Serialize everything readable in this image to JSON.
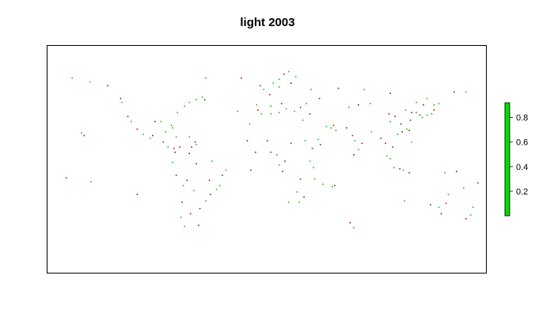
{
  "title": "light 2003",
  "colors": {
    "green": "#00cc00",
    "red": "#cc0000",
    "dark": "#553300",
    "legend_fill": "#00dd00",
    "frame": "#000000"
  },
  "legend": {
    "ticks": [
      {
        "label": "0.8",
        "value": 0.8
      },
      {
        "label": "0.6",
        "value": 0.6
      },
      {
        "label": "0.4",
        "value": 0.4
      },
      {
        "label": "0.2",
        "value": 0.2
      }
    ],
    "range": [
      0.0,
      0.92
    ]
  },
  "points": [
    {
      "lon": -77,
      "lat": 18,
      "c": "green"
    },
    {
      "lon": -74,
      "lat": 10,
      "c": "red"
    },
    {
      "lon": -86,
      "lat": 22,
      "c": "green"
    },
    {
      "lon": -88,
      "lat": 14,
      "c": "red"
    },
    {
      "lon": -105,
      "lat": 20,
      "c": "green"
    },
    {
      "lon": -110,
      "lat": 24,
      "c": "red"
    },
    {
      "lon": -115,
      "lat": 30,
      "c": "green"
    },
    {
      "lon": -118,
      "lat": 34,
      "c": "dark"
    },
    {
      "lon": -123,
      "lat": 45,
      "c": "green"
    },
    {
      "lon": -124,
      "lat": 48,
      "c": "red"
    },
    {
      "lon": -66,
      "lat": 18,
      "c": "green"
    },
    {
      "lon": -61,
      "lat": 14,
      "c": "red"
    },
    {
      "lon": -60,
      "lat": 12,
      "c": "green"
    },
    {
      "lon": -64,
      "lat": 10,
      "c": "dark"
    },
    {
      "lon": -80,
      "lat": 25,
      "c": "green"
    },
    {
      "lon": -81,
      "lat": 27,
      "c": "green"
    },
    {
      "lon": -76,
      "lat": 37,
      "c": "green"
    },
    {
      "lon": -70,
      "lat": 42,
      "c": "green"
    },
    {
      "lon": -66,
      "lat": 45,
      "c": "green"
    },
    {
      "lon": -60,
      "lat": 47,
      "c": "green"
    },
    {
      "lon": -55,
      "lat": 49,
      "c": "green"
    },
    {
      "lon": -53,
      "lat": 47,
      "c": "dark"
    },
    {
      "lon": -40,
      "lat": -20,
      "c": "green"
    },
    {
      "lon": -38,
      "lat": -12,
      "c": "red"
    },
    {
      "lon": -35,
      "lat": -8,
      "c": "green"
    },
    {
      "lon": -48,
      "lat": -27,
      "c": "red"
    },
    {
      "lon": -52,
      "lat": -32,
      "c": "green"
    },
    {
      "lon": -57,
      "lat": -38,
      "c": "dark"
    },
    {
      "lon": -65,
      "lat": -42,
      "c": "red"
    },
    {
      "lon": -70,
      "lat": -52,
      "c": "green"
    },
    {
      "lon": -73,
      "lat": -45,
      "c": "green"
    },
    {
      "lon": -72,
      "lat": -33,
      "c": "red"
    },
    {
      "lon": -71,
      "lat": -20,
      "c": "green"
    },
    {
      "lon": -77,
      "lat": -12,
      "c": "red"
    },
    {
      "lon": -80,
      "lat": -2,
      "c": "green"
    },
    {
      "lon": -78,
      "lat": 6,
      "c": "dark"
    },
    {
      "lon": -3,
      "lat": 55,
      "c": "green"
    },
    {
      "lon": -6,
      "lat": 58,
      "c": "red"
    },
    {
      "lon": 5,
      "lat": 60,
      "c": "green"
    },
    {
      "lon": 10,
      "lat": 63,
      "c": "green"
    },
    {
      "lon": 14,
      "lat": 67,
      "c": "red"
    },
    {
      "lon": 18,
      "lat": 69,
      "c": "green"
    },
    {
      "lon": 24,
      "lat": 65,
      "c": "green"
    },
    {
      "lon": 20,
      "lat": 60,
      "c": "dark"
    },
    {
      "lon": 10,
      "lat": 57,
      "c": "green"
    },
    {
      "lon": 2,
      "lat": 51,
      "c": "red"
    },
    {
      "lon": -9,
      "lat": 43,
      "c": "green"
    },
    {
      "lon": -8,
      "lat": 39,
      "c": "red"
    },
    {
      "lon": -5,
      "lat": 36,
      "c": "green"
    },
    {
      "lon": 3,
      "lat": 42,
      "c": "green"
    },
    {
      "lon": 12,
      "lat": 44,
      "c": "red"
    },
    {
      "lon": 16,
      "lat": 40,
      "c": "green"
    },
    {
      "lon": 23,
      "lat": 38,
      "c": "green"
    },
    {
      "lon": 28,
      "lat": 41,
      "c": "dark"
    },
    {
      "lon": 33,
      "lat": 44,
      "c": "green"
    },
    {
      "lon": 36,
      "lat": 36,
      "c": "red"
    },
    {
      "lon": 30,
      "lat": 31,
      "c": "green"
    },
    {
      "lon": 10,
      "lat": 37,
      "c": "green"
    },
    {
      "lon": -17,
      "lat": 15,
      "c": "red"
    },
    {
      "lon": -15,
      "lat": 28,
      "c": "green"
    },
    {
      "lon": -10,
      "lat": 6,
      "c": "red"
    },
    {
      "lon": 3,
      "lat": 6,
      "c": "dark"
    },
    {
      "lon": 8,
      "lat": 4,
      "c": "green"
    },
    {
      "lon": 10,
      "lat": -4,
      "c": "green"
    },
    {
      "lon": 13,
      "lat": -9,
      "c": "red"
    },
    {
      "lon": 18,
      "lat": -33,
      "c": "green"
    },
    {
      "lon": 27,
      "lat": -33,
      "c": "green"
    },
    {
      "lon": 31,
      "lat": -29,
      "c": "red"
    },
    {
      "lon": 39,
      "lat": -6,
      "c": "green"
    },
    {
      "lon": 40,
      "lat": -15,
      "c": "green"
    },
    {
      "lon": 45,
      "lat": 12,
      "c": "red"
    },
    {
      "lon": 43,
      "lat": 16,
      "c": "green"
    },
    {
      "lon": 47,
      "lat": -19,
      "c": "green"
    },
    {
      "lon": 57,
      "lat": -20,
      "c": "dark"
    },
    {
      "lon": 50,
      "lat": 26,
      "c": "green"
    },
    {
      "lon": 54,
      "lat": 25,
      "c": "green"
    },
    {
      "lon": 56,
      "lat": 27,
      "c": "red"
    },
    {
      "lon": 58,
      "lat": 23,
      "c": "green"
    },
    {
      "lon": 67,
      "lat": 25,
      "c": "dark"
    },
    {
      "lon": 72,
      "lat": 19,
      "c": "red"
    },
    {
      "lon": 74,
      "lat": 15,
      "c": "green"
    },
    {
      "lon": 77,
      "lat": 8,
      "c": "green"
    },
    {
      "lon": 80,
      "lat": 13,
      "c": "red"
    },
    {
      "lon": 88,
      "lat": 22,
      "c": "green"
    },
    {
      "lon": 96,
      "lat": 17,
      "c": "dark"
    },
    {
      "lon": 100,
      "lat": 13,
      "c": "red"
    },
    {
      "lon": 101,
      "lat": 3,
      "c": "green"
    },
    {
      "lon": 104,
      "lat": 1,
      "c": "green"
    },
    {
      "lon": 106,
      "lat": 10,
      "c": "red"
    },
    {
      "lon": 107,
      "lat": -6,
      "c": "green"
    },
    {
      "lon": 112,
      "lat": -7,
      "c": "dark"
    },
    {
      "lon": 115,
      "lat": -8,
      "c": "green"
    },
    {
      "lon": 120,
      "lat": -10,
      "c": "red"
    },
    {
      "lon": 122,
      "lat": 14,
      "c": "green"
    },
    {
      "lon": 121,
      "lat": 31,
      "c": "red"
    },
    {
      "lon": 117,
      "lat": 39,
      "c": "green"
    },
    {
      "lon": 122,
      "lat": 37,
      "c": "dark"
    },
    {
      "lon": 126,
      "lat": 37,
      "c": "green"
    },
    {
      "lon": 129,
      "lat": 35,
      "c": "red"
    },
    {
      "lon": 131,
      "lat": 33,
      "c": "green"
    },
    {
      "lon": 135,
      "lat": 35,
      "c": "green"
    },
    {
      "lon": 139,
      "lat": 36,
      "c": "green"
    },
    {
      "lon": 141,
      "lat": 39,
      "c": "red"
    },
    {
      "lon": 141,
      "lat": 43,
      "c": "green"
    },
    {
      "lon": 145,
      "lat": 44,
      "c": "green"
    },
    {
      "lon": 132,
      "lat": 43,
      "c": "dark"
    },
    {
      "lon": 114,
      "lat": 22,
      "c": "red"
    },
    {
      "lon": 118,
      "lat": 24,
      "c": "green"
    },
    {
      "lon": 120,
      "lat": 23,
      "c": "dark"
    },
    {
      "lon": 110,
      "lat": 20,
      "c": "green"
    },
    {
      "lon": 145,
      "lat": -37,
      "c": "green"
    },
    {
      "lon": 151,
      "lat": -34,
      "c": "red"
    },
    {
      "lon": 153,
      "lat": -27,
      "c": "green"
    },
    {
      "lon": 138,
      "lat": -35,
      "c": "dark"
    },
    {
      "lon": 116,
      "lat": -32,
      "c": "green"
    },
    {
      "lon": 147,
      "lat": -42,
      "c": "red"
    },
    {
      "lon": 174,
      "lat": -37,
      "c": "green"
    },
    {
      "lon": 172,
      "lat": -43,
      "c": "green"
    },
    {
      "lon": 168,
      "lat": -46,
      "c": "red"
    },
    {
      "lon": 150,
      "lat": -10,
      "c": "green"
    },
    {
      "lon": 160,
      "lat": -9,
      "c": "dark"
    },
    {
      "lon": 166,
      "lat": -22,
      "c": "green"
    },
    {
      "lon": 178,
      "lat": -18,
      "c": "red"
    },
    {
      "lon": -157,
      "lat": 21,
      "c": "green"
    },
    {
      "lon": -155,
      "lat": 19,
      "c": "red"
    },
    {
      "lon": -150,
      "lat": 61,
      "c": "green"
    },
    {
      "lon": -135,
      "lat": 58,
      "c": "dark"
    },
    {
      "lon": -165,
      "lat": 64,
      "c": "green"
    },
    {
      "lon": -170,
      "lat": -14,
      "c": "red"
    },
    {
      "lon": -149,
      "lat": -17,
      "c": "green"
    },
    {
      "lon": -110,
      "lat": -27,
      "c": "red"
    },
    {
      "lon": -25,
      "lat": 38,
      "c": "green"
    },
    {
      "lon": -22,
      "lat": 64,
      "c": "red"
    },
    {
      "lon": -52,
      "lat": 64,
      "c": "green"
    },
    {
      "lon": -14,
      "lat": -8,
      "c": "dark"
    },
    {
      "lon": -58,
      "lat": -51,
      "c": "red"
    },
    {
      "lon": 73,
      "lat": -53,
      "c": "green"
    },
    {
      "lon": 70,
      "lat": -49,
      "c": "red"
    },
    {
      "lon": 55,
      "lat": -21,
      "c": "green"
    },
    {
      "lon": 73,
      "lat": 4,
      "c": "red"
    },
    {
      "lon": 168,
      "lat": 53,
      "c": "green"
    },
    {
      "lon": 158,
      "lat": 53,
      "c": "dark"
    },
    {
      "lon": 135,
      "lat": 48,
      "c": "green"
    },
    {
      "lon": 104,
      "lat": 52,
      "c": "red"
    },
    {
      "lon": 82,
      "lat": 55,
      "c": "green"
    },
    {
      "lon": 60,
      "lat": 56,
      "c": "dark"
    },
    {
      "lon": 37,
      "lat": 55,
      "c": "green"
    },
    {
      "lon": 44,
      "lat": 48,
      "c": "red"
    },
    {
      "lon": 69,
      "lat": 41,
      "c": "green"
    },
    {
      "lon": 77,
      "lat": 43,
      "c": "dark"
    },
    {
      "lon": 87,
      "lat": 44,
      "c": "green"
    },
    {
      "lon": 103,
      "lat": 36,
      "c": "red"
    },
    {
      "lon": 104,
      "lat": 30,
      "c": "green"
    },
    {
      "lon": 113,
      "lat": 28,
      "c": "dark"
    },
    {
      "lon": 108,
      "lat": 34,
      "c": "red"
    },
    {
      "lon": 126,
      "lat": 45,
      "c": "green"
    },
    {
      "lon": -95,
      "lat": 30,
      "c": "red"
    },
    {
      "lon": -90,
      "lat": 30,
      "c": "green"
    },
    {
      "lon": -97,
      "lat": 19,
      "c": "dark"
    },
    {
      "lon": -99,
      "lat": 17,
      "c": "green"
    },
    {
      "lon": -79,
      "lat": 9,
      "c": "red"
    },
    {
      "lon": -84,
      "lat": 10,
      "c": "green"
    },
    {
      "lon": -66,
      "lat": 5,
      "c": "dark"
    },
    {
      "lon": -47,
      "lat": -1,
      "c": "green"
    },
    {
      "lon": -49,
      "lat": -16,
      "c": "red"
    },
    {
      "lon": -43,
      "lat": -23,
      "c": "green"
    },
    {
      "lon": -60,
      "lat": -3,
      "c": "dark"
    },
    {
      "lon": -68,
      "lat": -16,
      "c": "red"
    },
    {
      "lon": -62,
      "lat": -24,
      "c": "green"
    },
    {
      "lon": 0,
      "lat": 15,
      "c": "red"
    },
    {
      "lon": 32,
      "lat": 15,
      "c": "green"
    },
    {
      "lon": 38,
      "lat": 9,
      "c": "dark"
    },
    {
      "lon": 36,
      "lat": -1,
      "c": "green"
    },
    {
      "lon": 28,
      "lat": -15,
      "c": "red"
    },
    {
      "lon": 25,
      "lat": -25,
      "c": "green"
    },
    {
      "lon": 15,
      "lat": -1,
      "c": "dark"
    },
    {
      "lon": 20,
      "lat": 13,
      "c": "red"
    },
    {
      "lon": 3,
      "lat": 36,
      "c": "green"
    }
  ]
}
